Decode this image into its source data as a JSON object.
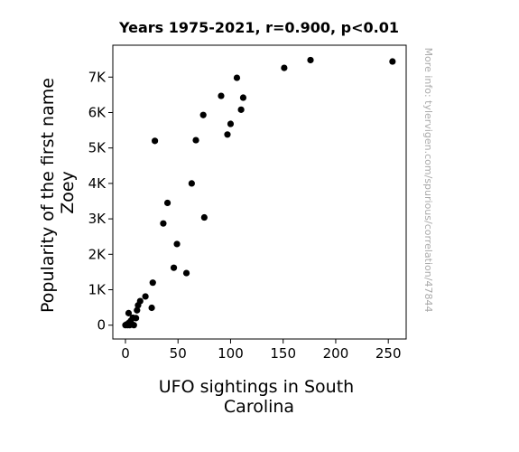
{
  "chart_data": {
    "type": "scatter",
    "title": "Years 1975-2021, r=0.900, p<0.01",
    "xlabel_lines": [
      "UFO sightings in South",
      "Carolina"
    ],
    "ylabel_lines": [
      "Popularity of the first name",
      "Zoey"
    ],
    "xlim": [
      -12,
      267
    ],
    "ylim": [
      -390,
      7900
    ],
    "xticks": [
      0,
      50,
      100,
      150,
      200,
      250
    ],
    "xtick_labels": [
      "0",
      "50",
      "100",
      "150",
      "200",
      "250"
    ],
    "yticks": [
      0,
      1000,
      2000,
      3000,
      4000,
      5000,
      6000,
      7000
    ],
    "ytick_labels": [
      "0",
      "1K",
      "2K",
      "3K",
      "4K",
      "5K",
      "6K",
      "7K"
    ],
    "grid": false,
    "marker_color": "#000000",
    "watermark": "More info: tylervigen.com/spurious/correlation/47844",
    "points": [
      {
        "x": 0,
        "y": 0
      },
      {
        "x": 1,
        "y": 20
      },
      {
        "x": 2,
        "y": 0
      },
      {
        "x": 3,
        "y": 60
      },
      {
        "x": 3,
        "y": 340
      },
      {
        "x": 4,
        "y": 0
      },
      {
        "x": 5,
        "y": 120
      },
      {
        "x": 6,
        "y": 30
      },
      {
        "x": 7,
        "y": 210
      },
      {
        "x": 8,
        "y": 0
      },
      {
        "x": 10,
        "y": 200
      },
      {
        "x": 11,
        "y": 420
      },
      {
        "x": 12,
        "y": 560
      },
      {
        "x": 14,
        "y": 680
      },
      {
        "x": 19,
        "y": 810
      },
      {
        "x": 25,
        "y": 490
      },
      {
        "x": 26,
        "y": 1200
      },
      {
        "x": 28,
        "y": 5200
      },
      {
        "x": 36,
        "y": 2870
      },
      {
        "x": 40,
        "y": 3450
      },
      {
        "x": 46,
        "y": 1620
      },
      {
        "x": 49,
        "y": 2290
      },
      {
        "x": 58,
        "y": 1470
      },
      {
        "x": 63,
        "y": 4000
      },
      {
        "x": 67,
        "y": 5220
      },
      {
        "x": 74,
        "y": 5930
      },
      {
        "x": 75,
        "y": 3040
      },
      {
        "x": 91,
        "y": 6470
      },
      {
        "x": 97,
        "y": 5380
      },
      {
        "x": 100,
        "y": 5680
      },
      {
        "x": 106,
        "y": 6980
      },
      {
        "x": 110,
        "y": 6080
      },
      {
        "x": 112,
        "y": 6420
      },
      {
        "x": 151,
        "y": 7260
      },
      {
        "x": 176,
        "y": 7480
      },
      {
        "x": 254,
        "y": 7440
      }
    ]
  }
}
